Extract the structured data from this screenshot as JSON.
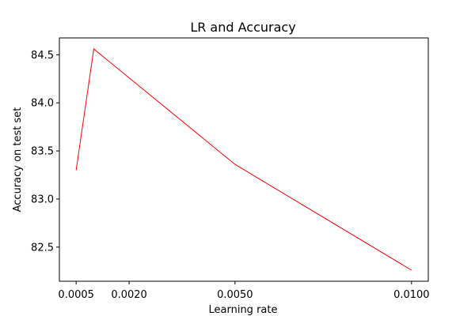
{
  "chart_data": {
    "type": "line",
    "title": "LR and Accuracy",
    "xlabel": "Learning rate",
    "ylabel": "Accuracy on test set",
    "x": [
      0.0005,
      0.001,
      0.005,
      0.01
    ],
    "series": [
      {
        "values": [
          83.3,
          84.56,
          83.36,
          82.26
        ],
        "color": "#ff0000"
      }
    ],
    "xlim": [
      2.5e-05,
      0.010475
    ],
    "ylim": [
      82.145,
      84.675
    ],
    "xticks": [
      0.0005,
      0.002,
      0.005,
      0.01
    ],
    "xtick_labels": [
      "0.0005",
      "0.0020",
      "0.0050",
      "0.0100"
    ],
    "yticks": [
      82.5,
      83.0,
      83.5,
      84.0,
      84.5
    ],
    "ytick_labels": [
      "82.5",
      "83.0",
      "83.5",
      "84.0",
      "84.5"
    ],
    "grid": false,
    "legend": "none"
  }
}
